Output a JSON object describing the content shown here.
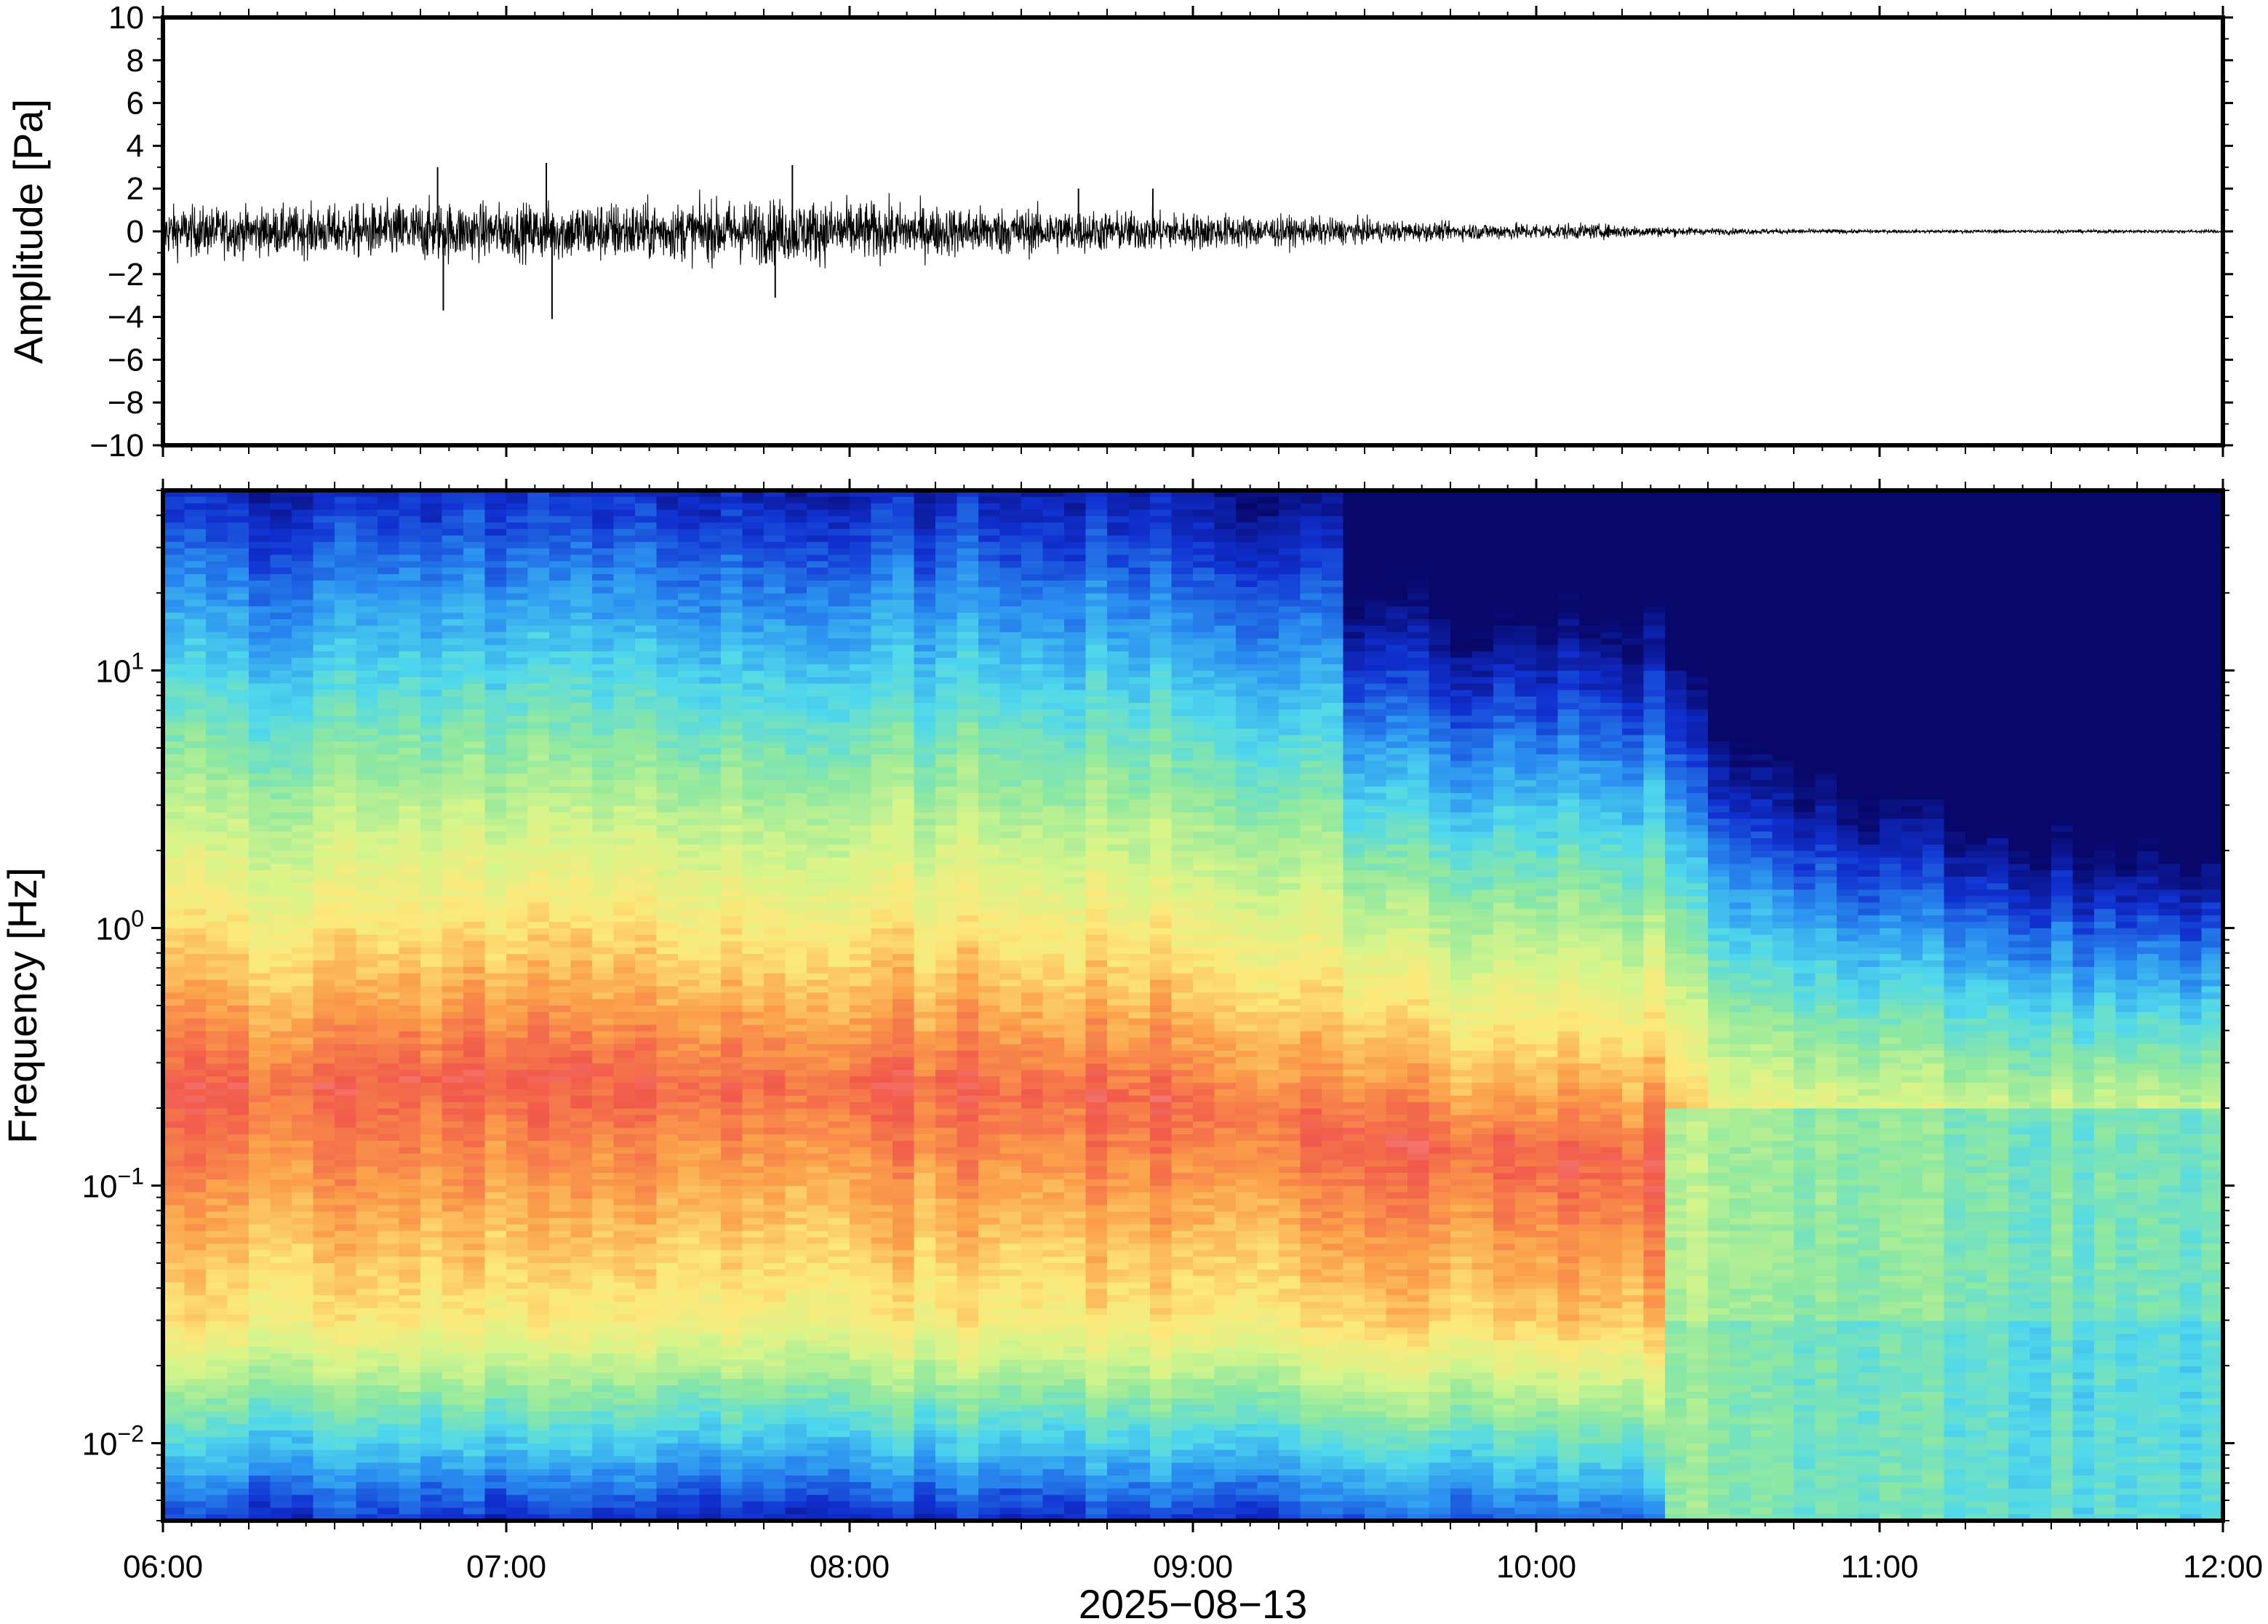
{
  "chart_data": [
    {
      "type": "line",
      "panel": "waveform",
      "ylabel": "Amplitude [Pa]",
      "ylim": [
        -10,
        10
      ],
      "yticks": [
        "10",
        "8",
        "6",
        "4",
        "2",
        "0",
        "−2",
        "−4",
        "−6",
        "−8",
        "−10"
      ],
      "xlim": [
        "06:00",
        "12:00"
      ],
      "series": [
        {
          "x": [
            "06:00",
            "06:15",
            "06:30",
            "06:45",
            "07:00",
            "07:15",
            "07:30",
            "07:45",
            "08:00",
            "08:15",
            "08:30",
            "08:45",
            "09:00",
            "09:15",
            "09:30",
            "09:45",
            "10:00",
            "10:15",
            "10:30",
            "10:45",
            "11:00",
            "11:15",
            "11:30",
            "11:45",
            "12:00"
          ],
          "envelope": [
            1.5,
            1.4,
            1.5,
            1.8,
            1.6,
            1.8,
            1.7,
            1.9,
            1.8,
            1.5,
            1.4,
            1.2,
            1.1,
            0.9,
            0.7,
            0.5,
            0.5,
            0.4,
            0.2,
            0.15,
            0.1,
            0.1,
            0.1,
            0.1,
            0.1
          ],
          "peaks": [
            {
              "x": "06:48",
              "y": 3.0
            },
            {
              "x": "06:49",
              "y": -3.7
            },
            {
              "x": "07:07",
              "y": 3.2
            },
            {
              "x": "07:08",
              "y": -4.1
            },
            {
              "x": "07:50",
              "y": 3.1
            },
            {
              "x": "07:47",
              "y": -3.1
            },
            {
              "x": "08:40",
              "y": 2.0
            },
            {
              "x": "08:53",
              "y": 2.0
            }
          ]
        }
      ]
    },
    {
      "type": "heatmap",
      "panel": "spectrogram",
      "ylabel": "Frequency [Hz]",
      "yscale": "log",
      "ylim": [
        0.005,
        50
      ],
      "yticks": [
        {
          "base": "10",
          "exp": "1",
          "value": 10
        },
        {
          "base": "10",
          "exp": "0",
          "value": 1
        },
        {
          "base": "10",
          "exp": "−1",
          "value": 0.1
        },
        {
          "base": "10",
          "exp": "−2",
          "value": 0.01
        }
      ],
      "xlabel": "2025−08−13",
      "xticks": [
        "06:00",
        "07:00",
        "08:00",
        "09:00",
        "10:00",
        "11:00",
        "12:00"
      ],
      "colormap": [
        "#08086b",
        "#1030d0",
        "#2a8ff0",
        "#4fd8ec",
        "#8ee8a0",
        "#d6f58a",
        "#fde87a",
        "#fba04a",
        "#f15a4a",
        "#fb9aa0"
      ],
      "description_rows": {
        "hours": [
          6.0,
          6.5,
          7.0,
          7.5,
          8.0,
          8.5,
          9.0,
          9.5,
          10.0,
          10.35,
          10.5,
          11.0,
          11.5,
          12.0
        ],
        "energy_band_high_freq_edge_hz": [
          0.25,
          0.25,
          0.28,
          0.27,
          0.26,
          0.25,
          0.22,
          0.16,
          0.14,
          0.13,
          0.06,
          0.05,
          0.05,
          0.05
        ]
      }
    }
  ]
}
